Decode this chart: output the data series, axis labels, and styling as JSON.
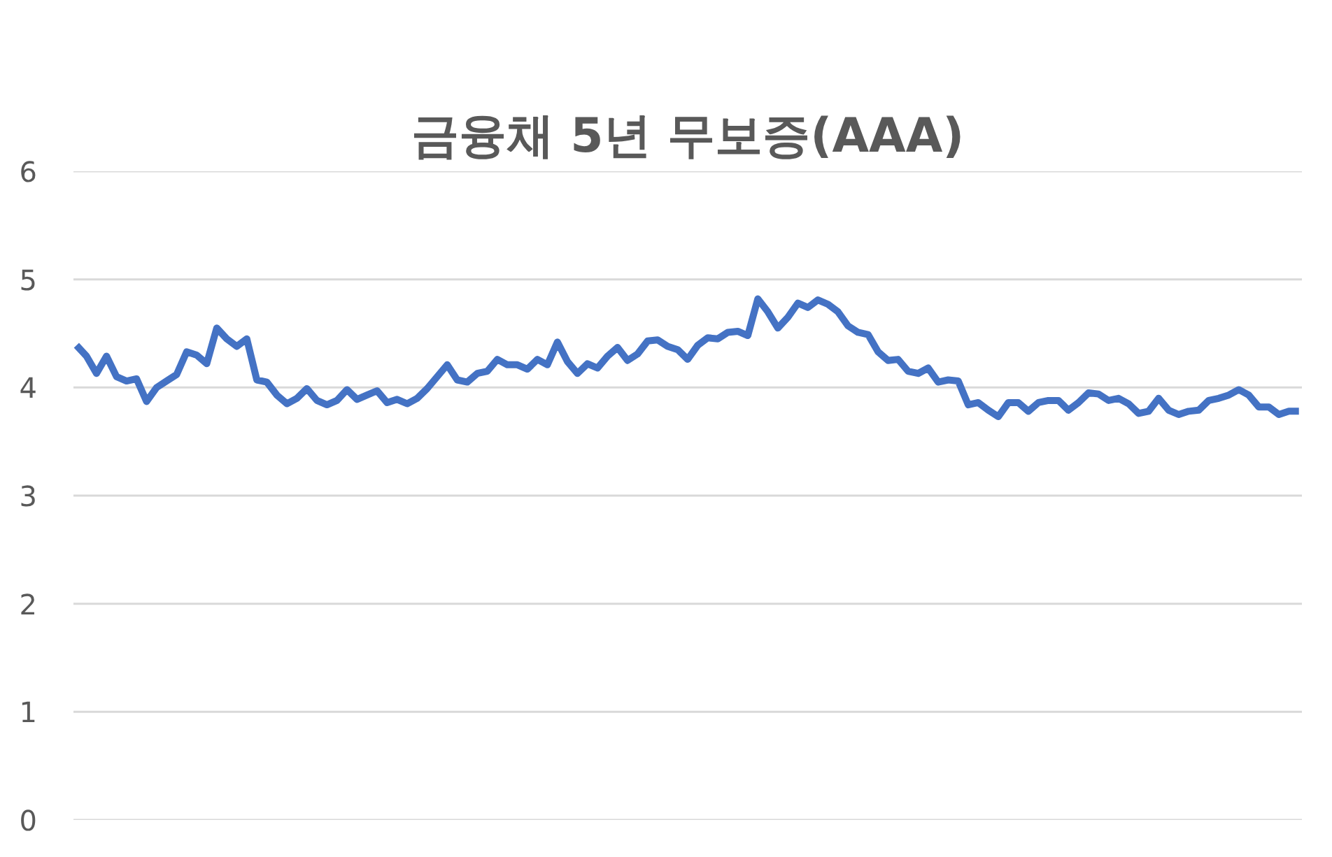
{
  "chart_data": {
    "type": "line",
    "title": "금융채 5년 무보증(AAA)",
    "categories": [
      null,
      null,
      null,
      null,
      null,
      null,
      null,
      null,
      null,
      null,
      null,
      null,
      null,
      null,
      null,
      null,
      null,
      null,
      null,
      null,
      null,
      null,
      null,
      null,
      null,
      null,
      null,
      null,
      null,
      null,
      null,
      null,
      null,
      null,
      null,
      null,
      null,
      null,
      null,
      null,
      null,
      null,
      null,
      null,
      null,
      null,
      null,
      null,
      null,
      null,
      null,
      null,
      null,
      null,
      null,
      null,
      null,
      null,
      null,
      null,
      null,
      null,
      null,
      null,
      null,
      null,
      null,
      null,
      null,
      null,
      null,
      null,
      null,
      null,
      null,
      null,
      null,
      null,
      null,
      null,
      null,
      null,
      null,
      null,
      null,
      null,
      null,
      null,
      null,
      null,
      null,
      null,
      null,
      null,
      null,
      null,
      null,
      null,
      null,
      null,
      null,
      null,
      null,
      null,
      null,
      null,
      null,
      null,
      null,
      null,
      null,
      null,
      null,
      null,
      null,
      null,
      null,
      null,
      null,
      null,
      null,
      null,
      null
    ],
    "series": [
      {
        "color": "#4472c4",
        "values": [
          4.39,
          4.29,
          4.13,
          4.29,
          4.1,
          4.06,
          4.08,
          3.87,
          4.0,
          4.06,
          4.12,
          4.33,
          4.3,
          4.22,
          4.55,
          4.45,
          4.38,
          4.45,
          4.07,
          4.05,
          3.93,
          3.85,
          3.9,
          3.99,
          3.88,
          3.84,
          3.88,
          3.98,
          3.89,
          3.93,
          3.97,
          3.86,
          3.89,
          3.85,
          3.9,
          3.99,
          4.1,
          4.21,
          4.07,
          4.05,
          4.13,
          4.15,
          4.26,
          4.21,
          4.21,
          4.17,
          4.26,
          4.21,
          4.42,
          4.24,
          4.13,
          4.22,
          4.18,
          4.29,
          4.37,
          4.25,
          4.31,
          4.43,
          4.44,
          4.38,
          4.35,
          4.26,
          4.39,
          4.46,
          4.45,
          4.51,
          4.52,
          4.48,
          4.82,
          4.7,
          4.55,
          4.65,
          4.78,
          4.74,
          4.81,
          4.77,
          4.7,
          4.57,
          4.51,
          4.49,
          4.33,
          4.25,
          4.26,
          4.15,
          4.13,
          4.18,
          4.05,
          4.07,
          4.06,
          3.84,
          3.86,
          3.79,
          3.73,
          3.86,
          3.86,
          3.78,
          3.86,
          3.88,
          3.88,
          3.79,
          3.86,
          3.95,
          3.94,
          3.88,
          3.9,
          3.85,
          3.76,
          3.78,
          3.9,
          3.79,
          3.75,
          3.78,
          3.79,
          3.88,
          3.9,
          3.93,
          3.98,
          3.93,
          3.82,
          3.82,
          3.75,
          3.78,
          3.78
        ]
      }
    ],
    "ylim": [
      0,
      6
    ],
    "yticks": [
      0,
      1,
      2,
      3,
      4,
      5,
      6
    ],
    "grid": "y",
    "tick_labels": "y",
    "marker": "none",
    "line_style": "solid"
  }
}
